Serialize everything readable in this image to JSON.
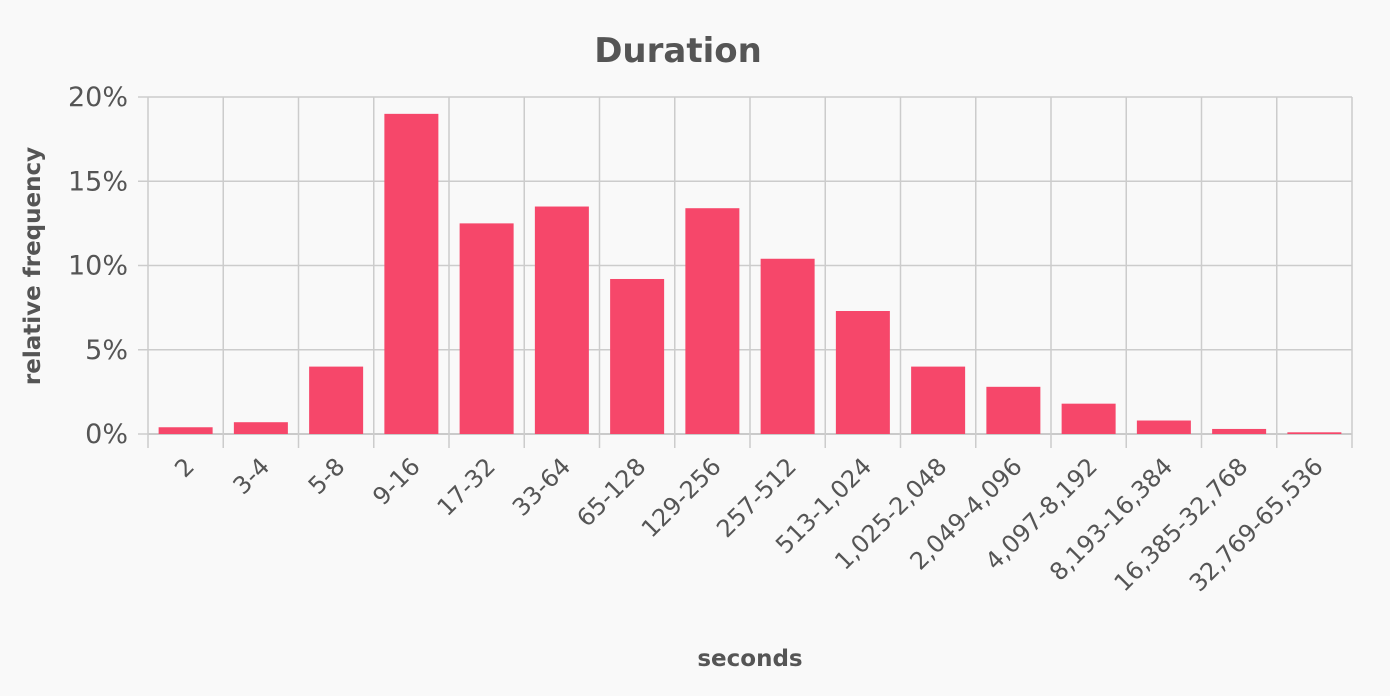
{
  "chart_data": {
    "type": "bar",
    "title": "Duration",
    "xlabel": "seconds",
    "ylabel": "relative frequency",
    "categories": [
      "2",
      "3-4",
      "5-8",
      "9-16",
      "17-32",
      "33-64",
      "65-128",
      "129-256",
      "257-512",
      "513-1,024",
      "1,025-2,048",
      "2,049-4,096",
      "4,097-8,192",
      "8,193-16,384",
      "16,385-32,768",
      "32,769-65,536"
    ],
    "values": [
      0.4,
      0.7,
      4.0,
      19.0,
      12.5,
      13.5,
      9.2,
      13.4,
      10.4,
      7.3,
      4.0,
      2.8,
      1.8,
      0.8,
      0.3,
      0.1
    ],
    "ylim": [
      0,
      20
    ],
    "yticks": [
      0,
      5,
      10,
      15,
      20
    ],
    "ytick_labels": [
      "0%",
      "5%",
      "10%",
      "15%",
      "20%"
    ],
    "grid": true,
    "bar_color": "#f6476a"
  }
}
